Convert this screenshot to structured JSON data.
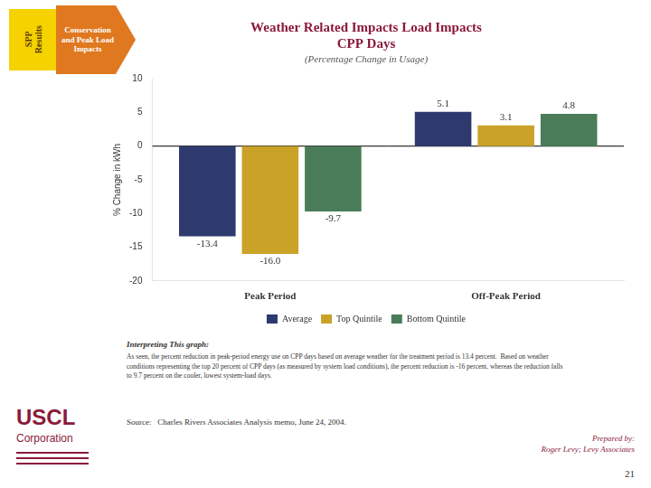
{
  "chart_data": {
    "type": "bar",
    "title": [
      "Weather Related Impacts Load Impacts",
      "CPP Days"
    ],
    "subtitle": "(Percentage Change in Usage)",
    "ylabel": "% Change in kWh",
    "categories": [
      "Peak Period",
      "Off-Peak Period"
    ],
    "series": [
      {
        "name": "Average",
        "color": "#2e3a6e",
        "values": [
          -13.4,
          5.1
        ]
      },
      {
        "name": "Top Quintile",
        "color": "#c9a227",
        "values": [
          -16.0,
          3.1
        ],
        "value_labels": [
          "-16.0",
          "3.1"
        ]
      },
      {
        "name": "Bottom Quintile",
        "color": "#4a7c59",
        "values": [
          -9.7,
          4.8
        ]
      }
    ],
    "ylim": [
      -20,
      10
    ],
    "yticks": [
      -20,
      -15,
      -10,
      -5,
      0,
      5,
      10
    ],
    "grid": false,
    "legend": "bottom",
    "data_labels": true,
    "annotations": [
      "SPP\nResults",
      "Conservation\nand Peak Load\nImpacts",
      "Interpreting This graph:",
      "As seen, the percent reduction in peak-period energy use on CPP days based on average weather for the treatment period is 13.4 percent.  Based on weather\nconditions representing the top 20 percent of CPP days (as measured by system load conditions), the percent reduction is -16 percent, whereas the reduction falls\nto 9.7 percent on the cooler, lowest system-load days.",
      "Source:   Charles Rivers Associates Analysis memo, June 24, 2004.",
      "USCL",
      "Corporation",
      "Prepared by:",
      "Roger Levy; Levy Associates",
      "21"
    ]
  }
}
